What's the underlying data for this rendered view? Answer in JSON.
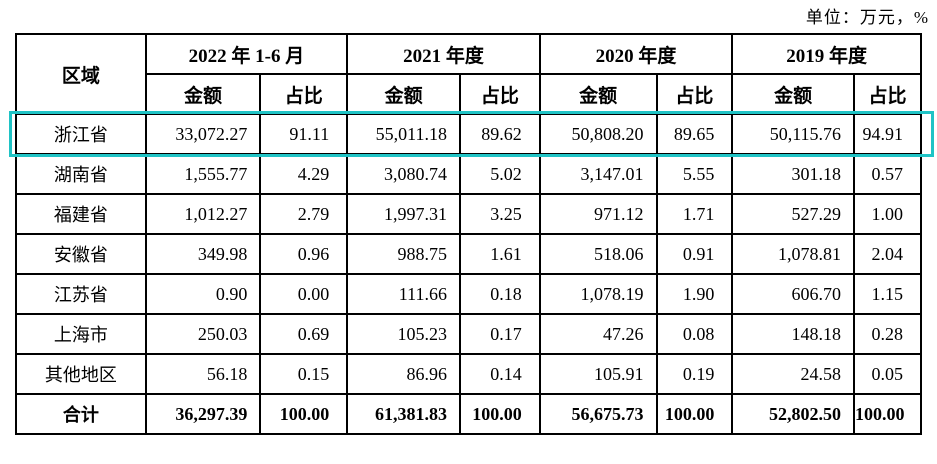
{
  "unit_label": "单位：万元，%",
  "accent_color": "#1fc3c5",
  "table": {
    "corner_header": "区域",
    "period_groups": [
      "2022 年 1-6 月",
      "2021 年度",
      "2020 年度",
      "2019 年度"
    ],
    "sub_headers": [
      "金额",
      "占比"
    ],
    "rows": [
      {
        "region": "浙江省",
        "highlighted": true,
        "is_total": false,
        "values": [
          "33,072.27",
          "91.11",
          "55,011.18",
          "89.62",
          "50,808.20",
          "89.65",
          "50,115.76",
          "94.91"
        ]
      },
      {
        "region": "湖南省",
        "highlighted": false,
        "is_total": false,
        "values": [
          "1,555.77",
          "4.29",
          "3,080.74",
          "5.02",
          "3,147.01",
          "5.55",
          "301.18",
          "0.57"
        ]
      },
      {
        "region": "福建省",
        "highlighted": false,
        "is_total": false,
        "values": [
          "1,012.27",
          "2.79",
          "1,997.31",
          "3.25",
          "971.12",
          "1.71",
          "527.29",
          "1.00"
        ]
      },
      {
        "region": "安徽省",
        "highlighted": false,
        "is_total": false,
        "values": [
          "349.98",
          "0.96",
          "988.75",
          "1.61",
          "518.06",
          "0.91",
          "1,078.81",
          "2.04"
        ]
      },
      {
        "region": "江苏省",
        "highlighted": false,
        "is_total": false,
        "values": [
          "0.90",
          "0.00",
          "111.66",
          "0.18",
          "1,078.19",
          "1.90",
          "606.70",
          "1.15"
        ]
      },
      {
        "region": "上海市",
        "highlighted": false,
        "is_total": false,
        "values": [
          "250.03",
          "0.69",
          "105.23",
          "0.17",
          "47.26",
          "0.08",
          "148.18",
          "0.28"
        ]
      },
      {
        "region": "其他地区",
        "highlighted": false,
        "is_total": false,
        "values": [
          "56.18",
          "0.15",
          "86.96",
          "0.14",
          "105.91",
          "0.19",
          "24.58",
          "0.05"
        ]
      },
      {
        "region": "合计",
        "highlighted": false,
        "is_total": true,
        "values": [
          "36,297.39",
          "100.00",
          "61,381.83",
          "100.00",
          "56,675.73",
          "100.00",
          "52,802.50",
          "100.00"
        ]
      }
    ]
  }
}
